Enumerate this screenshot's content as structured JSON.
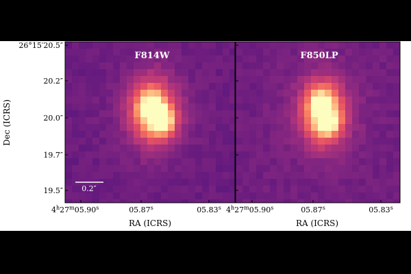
{
  "figure": {
    "panels": [
      {
        "title": "F814W",
        "source": {
          "blobs": [
            {
              "cx": 0.51,
              "cy": 0.42,
              "sx": 0.085,
              "sy": 0.135,
              "amp": 0.55
            },
            {
              "cx": 0.57,
              "cy": 0.48,
              "sx": 0.05,
              "sy": 0.055,
              "amp": 0.5
            },
            {
              "cx": 0.5,
              "cy": 0.38,
              "sx": 0.045,
              "sy": 0.045,
              "amp": 0.35
            }
          ],
          "background": 0.12,
          "noise": 0.035
        }
      },
      {
        "title": "F850LP",
        "source": {
          "blobs": [
            {
              "cx": 0.53,
              "cy": 0.43,
              "sx": 0.085,
              "sy": 0.13,
              "amp": 0.55
            },
            {
              "cx": 0.56,
              "cy": 0.49,
              "sx": 0.05,
              "sy": 0.055,
              "amp": 0.45
            },
            {
              "cx": 0.52,
              "cy": 0.36,
              "sx": 0.045,
              "sy": 0.045,
              "amp": 0.35
            }
          ],
          "background": 0.14,
          "noise": 0.035
        }
      }
    ],
    "ylabel": "Dec (ICRS)",
    "xlabel": "RA (ICRS)",
    "yticks": [
      "26°15′20.5″",
      "20.2″",
      "20.0″",
      "19.7″",
      "19.5″"
    ],
    "xtick_first": "4h27m05.90s",
    "xtick_mid": "05.87s",
    "xtick_last": "05.83s",
    "scalebar_label": "0.2″",
    "colormap": "magma"
  }
}
